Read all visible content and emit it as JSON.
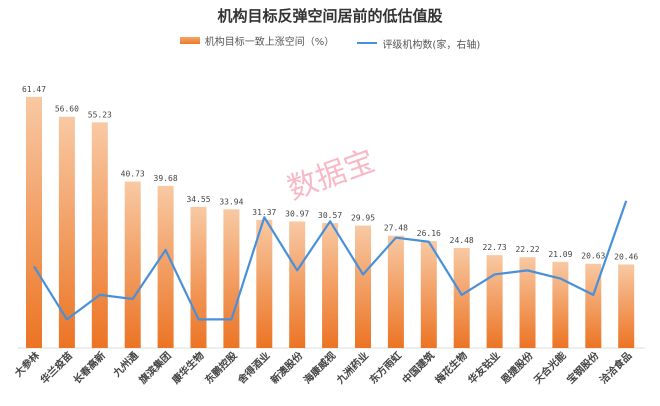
{
  "chart_data": {
    "type": "bar+line",
    "title": "机构目标反弹空间居前的低估值股",
    "categories": [
      "大参林",
      "华兰疫苗",
      "长春高新",
      "九州通",
      "旗滨集团",
      "康华生物",
      "东鹏控股",
      "舍得酒业",
      "新澳股份",
      "海康威视",
      "九洲药业",
      "东方雨虹",
      "中国建筑",
      "梅花生物",
      "华友钴业",
      "恩捷股份",
      "天合光能",
      "宝钢股份",
      "洽洽食品"
    ],
    "series": [
      {
        "name": "机构目标一致上涨空间（%）",
        "type": "bar",
        "axis": "left",
        "values": [
          61.47,
          56.6,
          55.23,
          40.73,
          39.68,
          34.55,
          33.94,
          31.37,
          30.97,
          30.57,
          29.95,
          27.48,
          26.16,
          24.48,
          22.73,
          22.22,
          21.09,
          20.63,
          20.46
        ]
      },
      {
        "name": "评级机构数(家，右轴)",
        "type": "line",
        "axis": "right",
        "values": [
          20,
          7,
          13,
          12,
          24,
          7,
          7,
          32,
          19,
          31,
          18,
          27,
          26,
          13,
          18,
          19,
          17,
          13,
          36
        ]
      }
    ],
    "ylim": [
      0,
      70
    ],
    "y2lim": [
      0,
      70
    ],
    "grid": false,
    "legend": "top",
    "watermark": "数据宝",
    "colors": {
      "bar_top": "#f8c9a3",
      "bar_bottom": "#ec7424",
      "line": "#4a90d9"
    }
  }
}
